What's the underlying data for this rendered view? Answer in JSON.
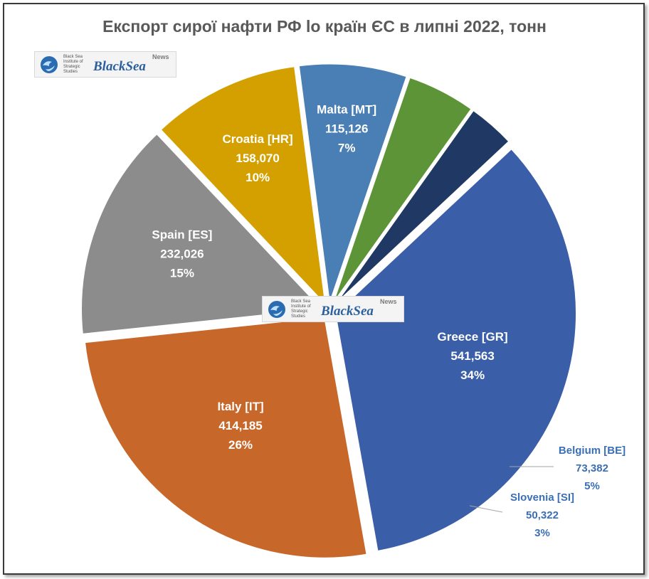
{
  "chart_data": {
    "type": "pie",
    "title": "Експорт сирої нафти РФ lо країн ЄС в липні 2022, тонн",
    "categories": [
      "Spain [ES]",
      "Croatia [HR]",
      "Malta [MT]",
      "Belgium [BE]",
      "Slovenia [SI]",
      "Greece [GR]",
      "Italy [IT]"
    ],
    "values": [
      232026,
      158070,
      115126,
      73382,
      50322,
      541563,
      414185
    ],
    "value_labels": [
      "232,026",
      "158,070",
      "115,126",
      "73,382",
      "50,322",
      "541,563",
      "414,185"
    ],
    "percent_labels": [
      "15%",
      "10%",
      "7%",
      "5%",
      "3%",
      "34%",
      "26%"
    ],
    "colors": [
      "#8c8c8c",
      "#d4a000",
      "#4a7fb5",
      "#5e9438",
      "#1f3864",
      "#3a5ea8",
      "#c8672a"
    ],
    "label_colors": [
      "#ffffff",
      "#ffffff",
      "#ffffff",
      "#3a6fb5",
      "#3a6fb5",
      "#ffffff",
      "#ffffff"
    ],
    "legend": "none"
  },
  "logo": {
    "institute": "Black Sea Institute of Strategic Studies",
    "brand": "BlackSea",
    "news": "News"
  }
}
